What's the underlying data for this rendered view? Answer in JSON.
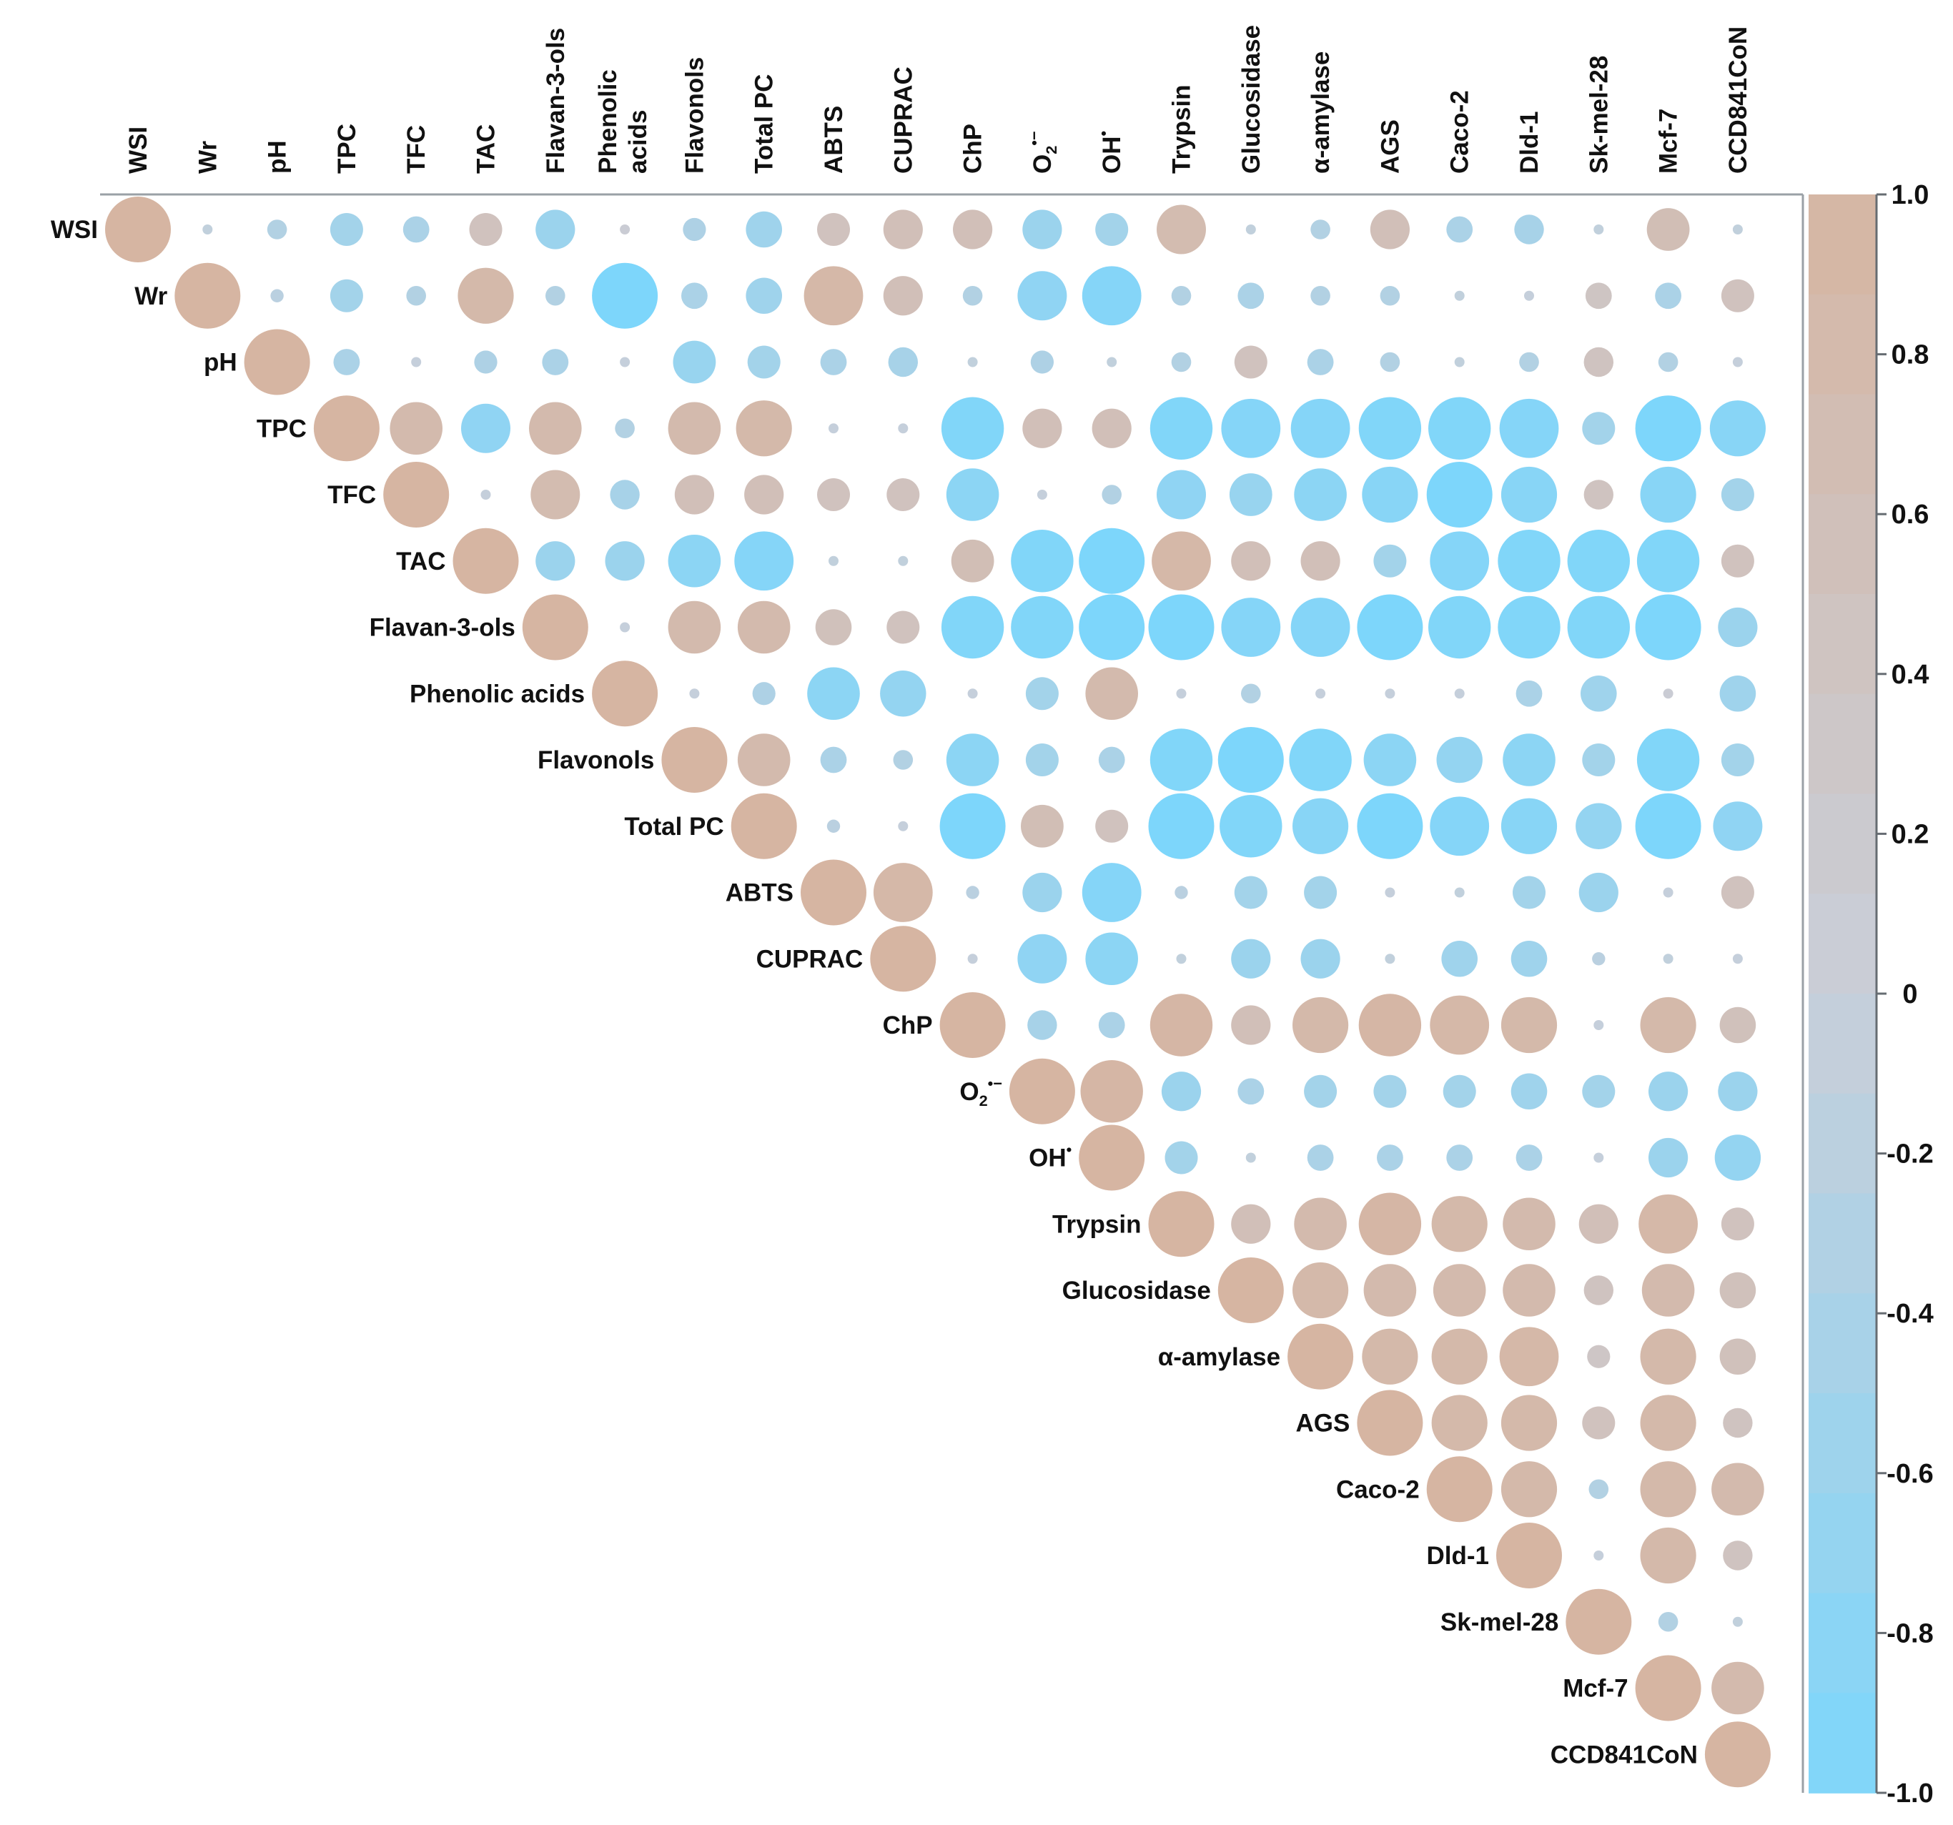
{
  "chart_data": {
    "type": "heatmap",
    "subtype": "upper-triangular correlation matrix (circle size and color encode r)",
    "variables": [
      "WSI",
      "Wr",
      "pH",
      "TPC",
      "TFC",
      "TAC",
      "Flavan-3-ols",
      "Phenolic acids",
      "Flavonols",
      "Total PC",
      "ABTS",
      "CUPRAC",
      "ChP",
      "O2•−",
      "OH•",
      "Trypsin",
      "Glucosidase",
      "α-amylase",
      "AGS",
      "Caco-2",
      "Dld-1",
      "Sk-mel-28",
      "Mcf-7",
      "CCD841CoN"
    ],
    "column_labels": [
      "WSI",
      "Wr",
      "pH",
      "TPC",
      "TFC",
      "TAC",
      "Flavan-3-ols",
      [
        "Phenolic",
        "acids"
      ],
      "Flavonols",
      "Total PC",
      "ABTS",
      "CUPRAC",
      "ChP",
      "O2•−",
      "OH•",
      "Trypsin",
      "Glucosidase",
      "α-amylase",
      "AGS",
      "Caco-2",
      "Dld-1",
      "Sk-mel-28",
      "Mcf-7",
      "CCD841CoN"
    ],
    "row_labels": [
      "WSI",
      "Wr",
      "pH",
      "TPC",
      "TFC",
      "TAC",
      "Flavan-3-ols",
      "Phenolic acids",
      "Flavonols",
      "Total PC",
      "ABTS",
      "CUPRAC",
      "ChP",
      "O2•−",
      "OH•",
      "Trypsin",
      "Glucosidase",
      "α-amylase",
      "AGS",
      "Caco-2",
      "Dld-1",
      "Sk-mel-28",
      "Mcf-7",
      "CCD841CoN"
    ],
    "r_matrix_upper": [
      [
        1.0,
        -0.1,
        -0.3,
        -0.5,
        -0.4,
        0.5,
        -0.6,
        0.1,
        -0.35,
        -0.55,
        0.5,
        0.6,
        0.6,
        -0.6,
        -0.5,
        0.75,
        -0.1,
        -0.3,
        0.6,
        -0.4,
        -0.45,
        -0.1,
        0.65,
        -0.1
      ],
      [
        1.0,
        -0.2,
        -0.5,
        -0.3,
        0.85,
        -0.3,
        -1.0,
        -0.4,
        -0.55,
        0.9,
        0.6,
        -0.3,
        -0.75,
        -0.9,
        -0.3,
        -0.4,
        -0.3,
        -0.3,
        -0.1,
        -0.05,
        0.4,
        -0.4,
        0.5
      ],
      [
        1.0,
        -0.4,
        -0.05,
        -0.35,
        -0.4,
        -0.05,
        -0.65,
        -0.5,
        -0.4,
        -0.45,
        -0.1,
        -0.35,
        -0.1,
        -0.3,
        0.5,
        -0.4,
        -0.3,
        -0.1,
        -0.3,
        0.45,
        -0.3,
        -0.05
      ],
      [
        1.0,
        0.8,
        -0.75,
        0.8,
        -0.3,
        0.8,
        0.85,
        -0.05,
        -0.05,
        -0.95,
        0.6,
        0.6,
        -0.95,
        -0.9,
        -0.9,
        -0.95,
        -0.95,
        -0.9,
        -0.5,
        -1.0,
        -0.85
      ],
      [
        1.0,
        -0.05,
        0.75,
        -0.45,
        0.6,
        0.6,
        0.5,
        0.5,
        -0.8,
        -0.05,
        -0.3,
        -0.75,
        -0.65,
        -0.8,
        -0.85,
        -1.0,
        -0.85,
        0.45,
        -0.85,
        -0.5
      ],
      [
        1.0,
        -0.6,
        -0.6,
        -0.8,
        -0.9,
        -0.1,
        -0.1,
        0.65,
        -0.95,
        -1.0,
        0.9,
        0.6,
        0.6,
        -0.5,
        -0.9,
        -0.95,
        -0.95,
        -0.95,
        0.5
      ],
      [
        1.0,
        -0.05,
        0.8,
        0.8,
        0.55,
        0.5,
        -0.95,
        -0.95,
        -1.0,
        -1.0,
        -0.9,
        -0.9,
        -1.0,
        -0.95,
        -0.95,
        -0.95,
        -1.0,
        -0.6
      ],
      [
        1.0,
        -0.05,
        -0.35,
        -0.8,
        -0.7,
        -0.05,
        -0.5,
        0.8,
        -0.05,
        -0.3,
        -0.05,
        -0.05,
        -0.05,
        -0.4,
        -0.55,
        0.1,
        -0.55
      ],
      [
        1.0,
        0.8,
        -0.4,
        -0.3,
        -0.8,
        -0.5,
        -0.4,
        -0.95,
        -1.0,
        -0.95,
        -0.8,
        -0.7,
        -0.8,
        -0.5,
        -0.95,
        -0.5
      ],
      [
        1.0,
        -0.2,
        -0.05,
        -1.0,
        0.65,
        0.5,
        -1.0,
        -0.95,
        -0.85,
        -1.0,
        -0.9,
        -0.85,
        -0.7,
        -1.0,
        -0.75
      ],
      [
        1.0,
        0.9,
        -0.2,
        -0.6,
        -0.9,
        -0.2,
        -0.5,
        -0.5,
        -0.05,
        -0.1,
        -0.5,
        -0.6,
        -0.05,
        0.5
      ],
      [
        1.0,
        -0.05,
        -0.75,
        -0.8,
        -0.1,
        -0.6,
        -0.6,
        -0.1,
        -0.55,
        -0.55,
        -0.2,
        -0.1,
        -0.05
      ],
      [
        1.0,
        -0.45,
        -0.4,
        0.95,
        0.6,
        0.85,
        0.95,
        0.9,
        0.85,
        -0.05,
        0.85,
        0.55
      ],
      [
        1.0,
        0.95,
        -0.6,
        -0.4,
        -0.5,
        -0.5,
        -0.5,
        -0.55,
        -0.5,
        -0.6,
        -0.6
      ],
      [
        1.0,
        -0.5,
        -0.1,
        -0.4,
        -0.4,
        -0.4,
        -0.4,
        -0.05,
        -0.6,
        -0.7
      ],
      [
        1.0,
        0.6,
        0.8,
        0.95,
        0.85,
        0.8,
        0.6,
        0.9,
        0.5
      ],
      [
        1.0,
        0.85,
        0.8,
        0.8,
        0.8,
        0.45,
        0.8,
        0.55
      ],
      [
        1.0,
        0.85,
        0.85,
        0.9,
        0.35,
        0.85,
        0.55
      ],
      [
        1.0,
        0.85,
        0.85,
        0.5,
        0.85,
        0.45
      ],
      [
        1.0,
        0.85,
        -0.3,
        0.85,
        0.8
      ],
      [
        1.0,
        -0.05,
        0.85,
        0.45
      ],
      [
        1.0,
        -0.3,
        -0.1
      ],
      [
        1.0,
        0.8
      ],
      [
        1.0
      ]
    ],
    "color_scale": {
      "min": -1.0,
      "max": 1.0,
      "ticks": [
        "1.0",
        "0.8",
        "0.6",
        "0.4",
        "0.2",
        "0",
        "-0.2",
        "-0.4",
        "-0.6",
        "-0.8",
        "-1.0"
      ],
      "colors": {
        "neg": "#7dd6fb",
        "mid": "#c9cfd9",
        "pos": "#d6b5a2",
        "frame": "#9aa0a6"
      }
    },
    "title": "",
    "xlabel": "",
    "ylabel": "",
    "legend": "colorbar at right"
  }
}
